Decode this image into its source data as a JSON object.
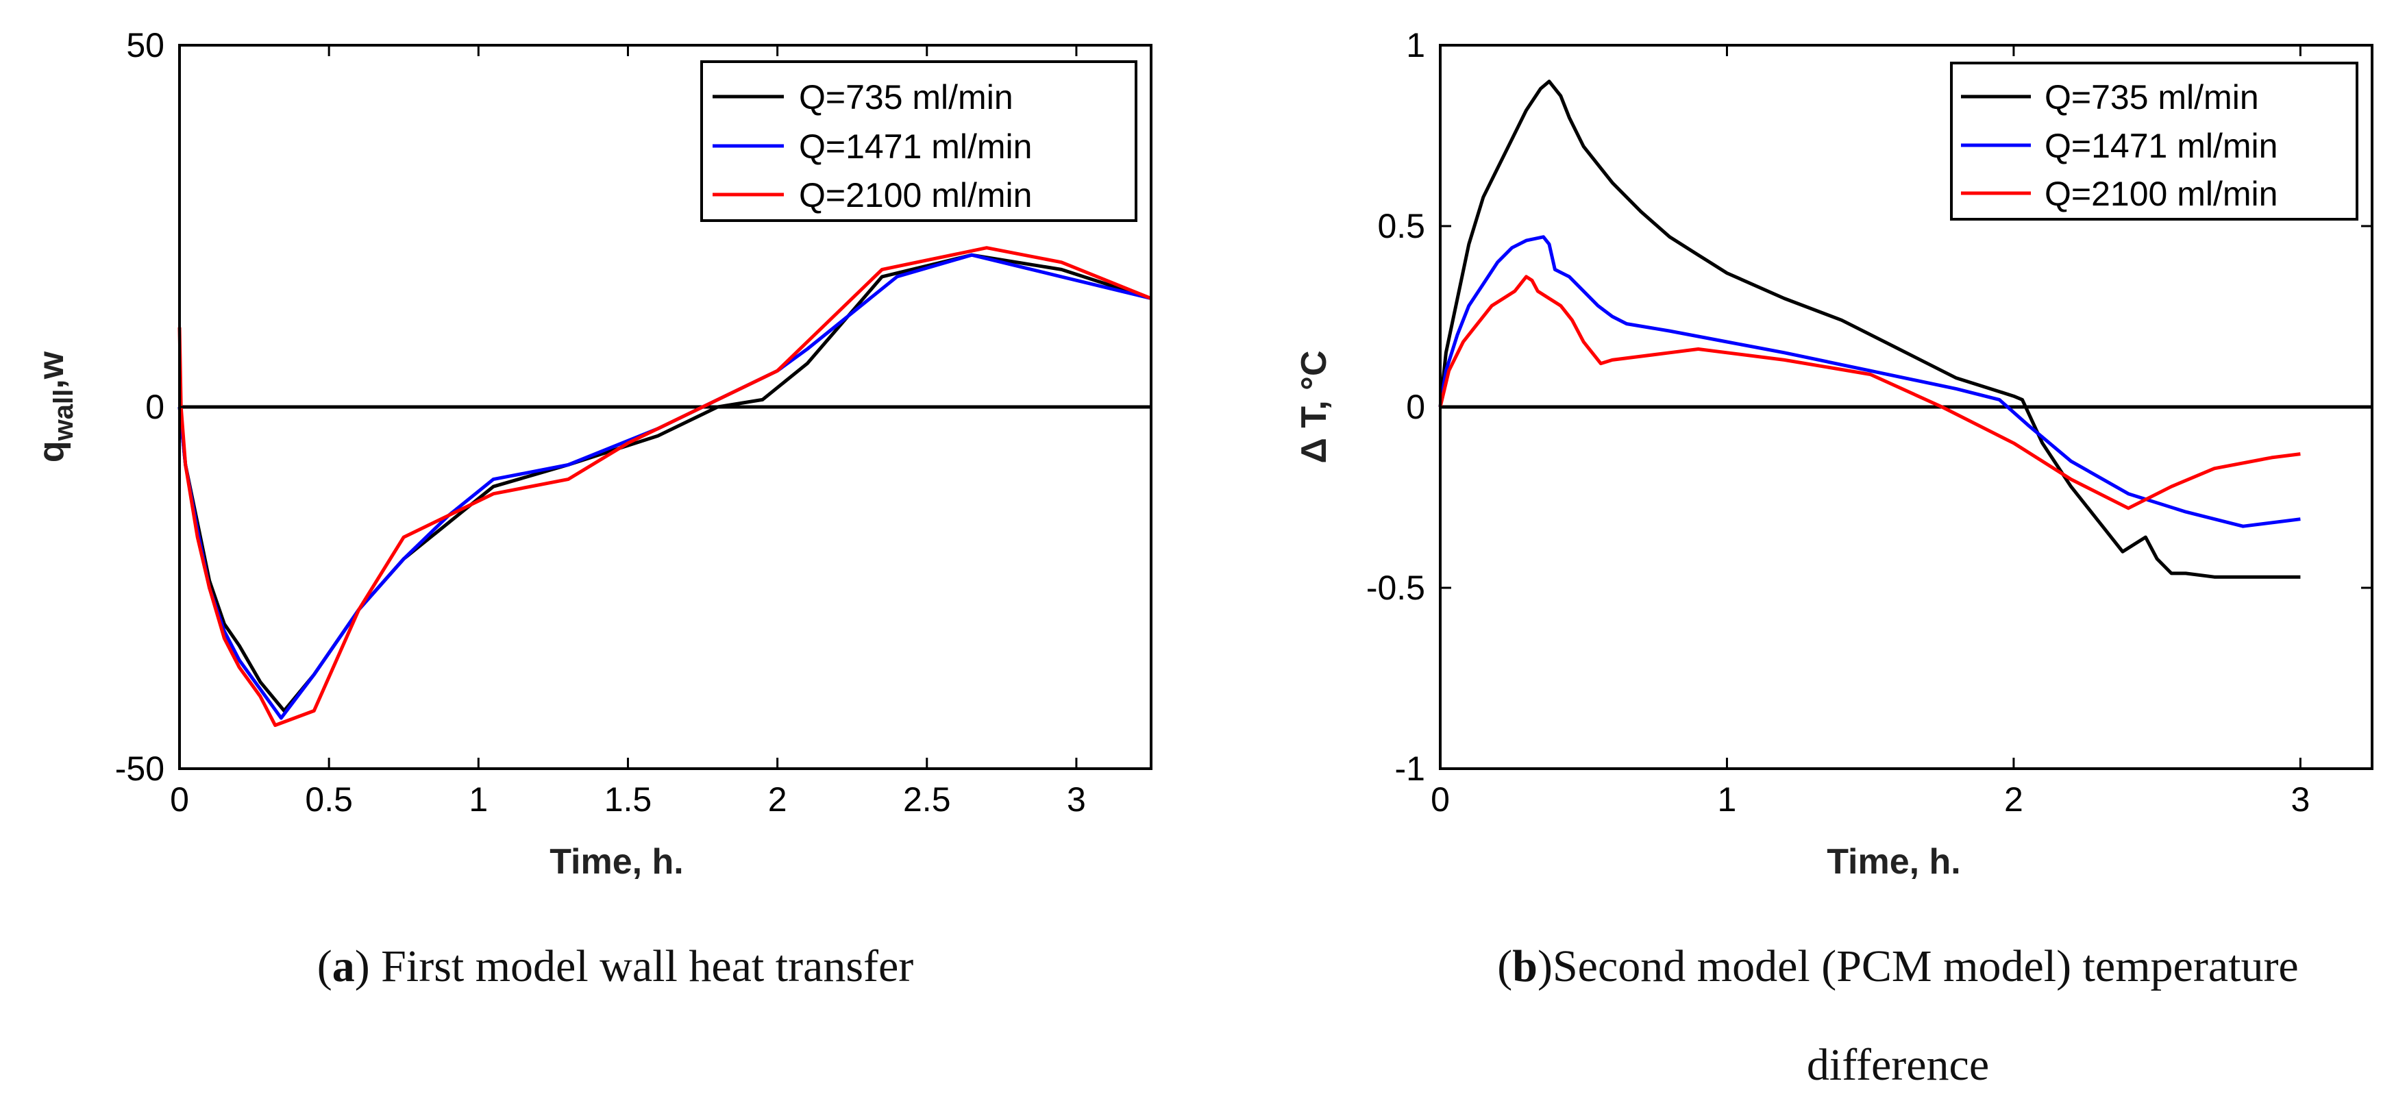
{
  "chart_data": [
    {
      "type": "line",
      "caption_letter": "a",
      "caption_text": "First model wall heat transfer",
      "xlabel": "Time, h.",
      "ylabel_main": "q",
      "ylabel_sub": "wall",
      "ylabel_tail": ",w",
      "xlim": [
        0,
        3.25
      ],
      "ylim": [
        -50,
        50
      ],
      "xticks": [
        "0",
        "0.5",
        "1",
        "1.5",
        "2",
        "2.5",
        "3"
      ],
      "xtick_values": [
        0,
        0.5,
        1,
        1.5,
        2,
        2.5,
        3
      ],
      "yticks": [
        "-50",
        "0",
        "50"
      ],
      "ytick_values": [
        -50,
        0,
        50
      ],
      "zero_line": true,
      "legend_position": "top-right",
      "series": [
        {
          "name": "Q=735 ml/min",
          "color": "#000000",
          "x": [
            0,
            0.02,
            0.06,
            0.1,
            0.15,
            0.2,
            0.27,
            0.35,
            0.45,
            0.6,
            0.75,
            0.9,
            1.05,
            1.3,
            1.6,
            1.8,
            1.95,
            2.1,
            2.35,
            2.65,
            2.95,
            3.25
          ],
          "y": [
            0,
            -8,
            -16,
            -24,
            -30,
            -33,
            -38,
            -42,
            -37,
            -28,
            -21,
            -16,
            -11,
            -8,
            -4,
            0,
            1,
            6,
            18,
            21,
            19,
            15
          ]
        },
        {
          "name": "Q=1471 ml/min",
          "color": "#0000ff",
          "x": [
            0,
            0.02,
            0.06,
            0.1,
            0.15,
            0.2,
            0.27,
            0.34,
            0.45,
            0.6,
            0.75,
            0.9,
            1.05,
            1.3,
            1.6,
            1.8,
            2.0,
            2.1,
            2.4,
            2.65,
            2.95,
            3.25
          ],
          "y": [
            0,
            -8,
            -17,
            -25,
            -31,
            -35,
            -39,
            -43,
            -37,
            -28,
            -21,
            -15,
            -10,
            -8,
            -3,
            1,
            5,
            8,
            18,
            21,
            18,
            15
          ]
        },
        {
          "name": "Q=2100 ml/min",
          "color": "#ff0000",
          "x": [
            0,
            0.005,
            0.02,
            0.06,
            0.1,
            0.15,
            0.2,
            0.27,
            0.32,
            0.45,
            0.6,
            0.75,
            0.9,
            1.05,
            1.3,
            1.5,
            1.75,
            2.0,
            2.1,
            2.35,
            2.7,
            2.95,
            3.25
          ],
          "y": [
            11,
            0,
            -8,
            -18,
            -25,
            -32,
            -36,
            -40,
            -44,
            -42,
            -28,
            -18,
            -15,
            -12,
            -10,
            -5,
            0,
            5,
            9,
            19,
            22,
            20,
            15
          ]
        }
      ]
    },
    {
      "type": "line",
      "caption_letter": "b",
      "caption_text": "Second model (PCM model) temperature difference",
      "caption_line1": "Second model (PCM model) temperature",
      "caption_line2": "difference",
      "xlabel": "Time, h.",
      "ylabel": "Δ T, °C",
      "xlim": [
        0,
        3.25
      ],
      "ylim": [
        -1,
        1
      ],
      "xticks": [
        "0",
        "1",
        "2",
        "3"
      ],
      "xtick_values": [
        0,
        1,
        2,
        3
      ],
      "yticks": [
        "-1",
        "-0.5",
        "0",
        "0.5",
        "1"
      ],
      "ytick_values": [
        -1,
        -0.5,
        0,
        0.5,
        1
      ],
      "zero_line": true,
      "legend_position": "top-right",
      "series": [
        {
          "name": "Q=735 ml/min",
          "color": "#000000",
          "x": [
            0,
            0.02,
            0.06,
            0.1,
            0.15,
            0.2,
            0.25,
            0.3,
            0.35,
            0.38,
            0.42,
            0.45,
            0.5,
            0.6,
            0.7,
            0.8,
            0.9,
            1.0,
            1.2,
            1.4,
            1.6,
            1.8,
            2.0,
            2.03,
            2.1,
            2.2,
            2.3,
            2.38,
            2.42,
            2.46,
            2.5,
            2.55,
            2.6,
            2.7,
            2.8,
            3.0
          ],
          "y": [
            0,
            0.15,
            0.3,
            0.45,
            0.58,
            0.66,
            0.74,
            0.82,
            0.88,
            0.9,
            0.86,
            0.8,
            0.72,
            0.62,
            0.54,
            0.47,
            0.42,
            0.37,
            0.3,
            0.24,
            0.16,
            0.08,
            0.03,
            0.02,
            -0.1,
            -0.22,
            -0.32,
            -0.4,
            -0.38,
            -0.36,
            -0.42,
            -0.46,
            -0.46,
            -0.47,
            -0.47,
            -0.47
          ]
        },
        {
          "name": "Q=1471 ml/min",
          "color": "#0000ff",
          "x": [
            0,
            0.02,
            0.06,
            0.1,
            0.15,
            0.2,
            0.25,
            0.3,
            0.36,
            0.38,
            0.4,
            0.45,
            0.5,
            0.55,
            0.6,
            0.65,
            0.8,
            1.0,
            1.2,
            1.5,
            1.8,
            1.95,
            2.05,
            2.2,
            2.4,
            2.6,
            2.8,
            3.0
          ],
          "y": [
            0,
            0.1,
            0.2,
            0.28,
            0.34,
            0.4,
            0.44,
            0.46,
            0.47,
            0.45,
            0.38,
            0.36,
            0.32,
            0.28,
            0.25,
            0.23,
            0.21,
            0.18,
            0.15,
            0.1,
            0.05,
            0.02,
            -0.05,
            -0.15,
            -0.24,
            -0.29,
            -0.33,
            -0.31
          ]
        },
        {
          "name": "Q=2100 ml/min",
          "color": "#ff0000",
          "x": [
            0,
            0.03,
            0.08,
            0.12,
            0.18,
            0.22,
            0.26,
            0.3,
            0.32,
            0.34,
            0.38,
            0.42,
            0.46,
            0.5,
            0.56,
            0.6,
            0.8,
            0.9,
            1.0,
            1.2,
            1.5,
            1.75,
            2.0,
            2.2,
            2.4,
            2.55,
            2.7,
            2.9,
            3.0
          ],
          "y": [
            0,
            0.1,
            0.18,
            0.22,
            0.28,
            0.3,
            0.32,
            0.36,
            0.35,
            0.32,
            0.3,
            0.28,
            0.24,
            0.18,
            0.12,
            0.13,
            0.15,
            0.16,
            0.15,
            0.13,
            0.09,
            0.0,
            -0.1,
            -0.2,
            -0.28,
            -0.22,
            -0.17,
            -0.14,
            -0.13
          ]
        }
      ]
    }
  ]
}
